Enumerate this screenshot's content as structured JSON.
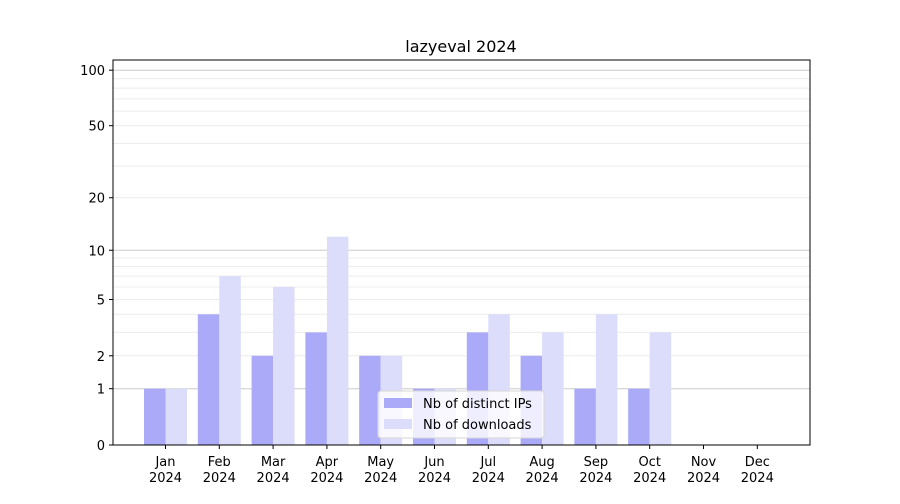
{
  "chart_data": {
    "type": "bar",
    "title": "lazyeval 2024",
    "xlabel": "",
    "ylabel": "",
    "yscale": "log(1+y)",
    "ylim": [
      0,
      110
    ],
    "yticks": [
      0,
      1,
      2,
      5,
      10,
      20,
      50,
      100
    ],
    "grid": true,
    "legend_position": "bottom-center",
    "categories": [
      "Jan\n2024",
      "Feb\n2024",
      "Mar\n2024",
      "Apr\n2024",
      "May\n2024",
      "Jun\n2024",
      "Jul\n2024",
      "Aug\n2024",
      "Sep\n2024",
      "Oct\n2024",
      "Nov\n2024",
      "Dec\n2024"
    ],
    "series": [
      {
        "name": "Nb of distinct IPs",
        "color": "#aaaaf9",
        "values": [
          1,
          4,
          2,
          3,
          2,
          1,
          3,
          2,
          1,
          1,
          0,
          0
        ]
      },
      {
        "name": "Nb of downloads",
        "color": "#dcdcfb",
        "values": [
          1,
          7,
          6,
          12,
          2,
          1,
          4,
          3,
          4,
          3,
          0,
          0
        ]
      }
    ]
  }
}
